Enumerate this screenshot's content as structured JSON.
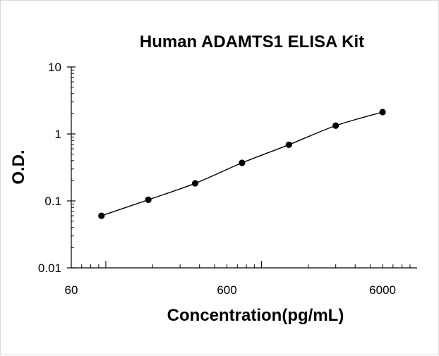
{
  "chart_data": {
    "type": "scatter",
    "title": "Human ADAMTS1 ELISA Kit",
    "xlabel": "Concentration(pg/mL)",
    "ylabel": "O.D.",
    "x_scale": "log",
    "y_scale": "log",
    "xlim": [
      60,
      10000
    ],
    "ylim": [
      0.01,
      10
    ],
    "x_ticks": [
      {
        "value": 60,
        "label": "60"
      },
      {
        "value": 600,
        "label": "600"
      },
      {
        "value": 6000,
        "label": "6000"
      }
    ],
    "y_ticks": [
      {
        "value": 10,
        "label": "10"
      },
      {
        "value": 1,
        "label": "1"
      },
      {
        "value": 0.1,
        "label": "0.1"
      },
      {
        "value": 0.01,
        "label": "0.01"
      }
    ],
    "grid": false,
    "legend": "none",
    "series": [
      {
        "x": [
          93.75,
          187.5,
          375,
          750,
          1500,
          3000,
          6000
        ],
        "y": [
          0.06,
          0.104,
          0.183,
          0.37,
          0.69,
          1.33,
          2.12
        ],
        "marker_color": "#000000",
        "line_color": "#000000",
        "fit_curve": true
      }
    ]
  }
}
